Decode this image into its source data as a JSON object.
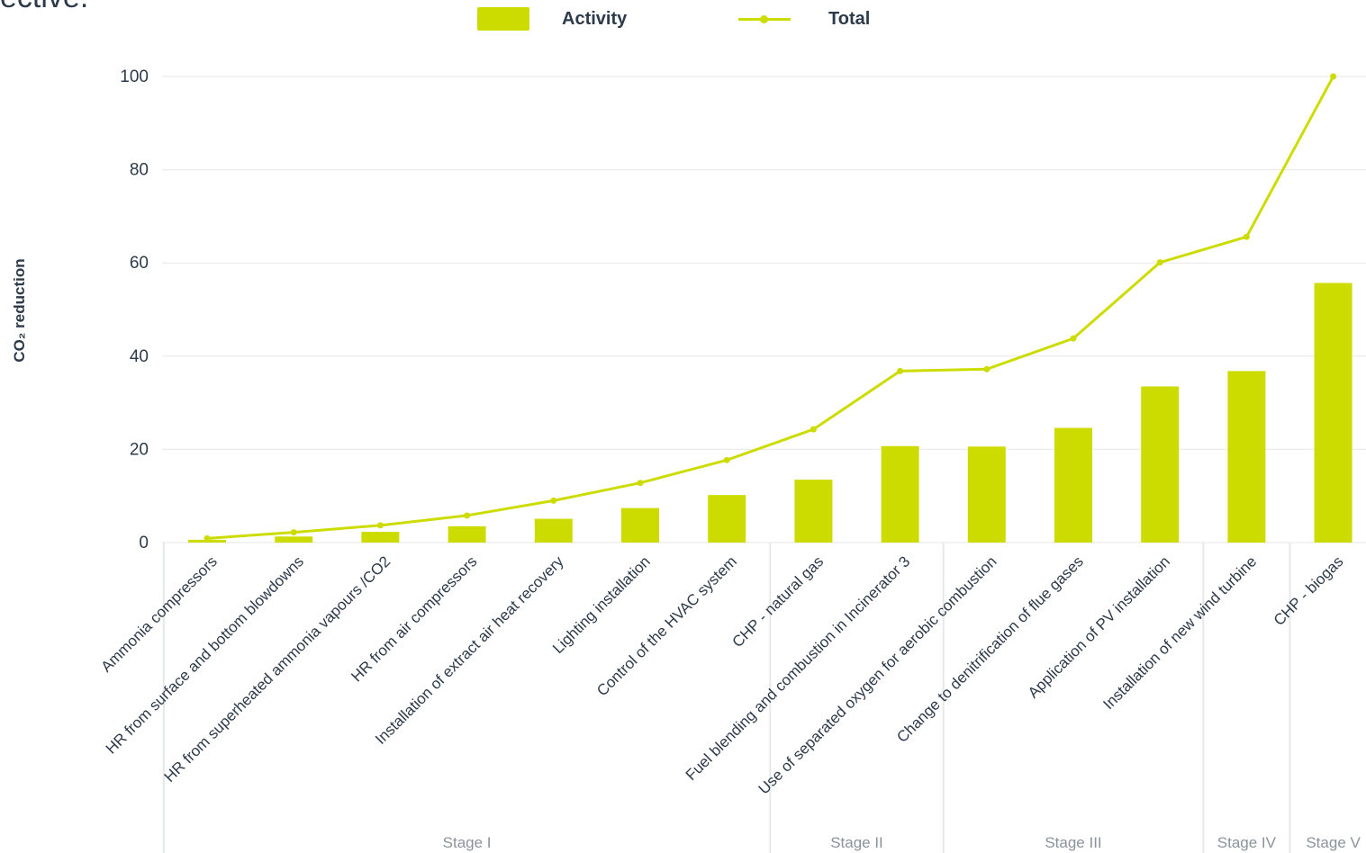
{
  "cut_text": "ective.",
  "legend": {
    "activity": "Activity",
    "total": "Total"
  },
  "colors": {
    "bar": "#cddc00",
    "line": "#cddc00",
    "grid": "#e6e8ea",
    "text": "#2d3a4a",
    "stage_text": "#8a939c"
  },
  "chart_data": {
    "type": "bar",
    "ylabel": "CO₂ reduction",
    "ylim": [
      0,
      100
    ],
    "yticks": [
      0,
      20,
      40,
      60,
      80,
      100
    ],
    "grid": true,
    "legend_position": "top",
    "categories": [
      "Ammonia compressors",
      "HR from surface and bottom blowdowns",
      "HR from superheated ammonia vapours /CO2",
      "HR from air compressors",
      "Installation of extract air heat recovery",
      "Lighting installation",
      "Control of the HVAC system",
      "CHP - natural gas",
      "Fuel blending and combustion in Incinerator 3",
      "Use of separated oxygen for aerobic combustion",
      "Change to denitrification of flue gases",
      "Application of PV installation",
      "Installation of new wind turbine",
      "CHP - biogas"
    ],
    "series": [
      {
        "name": "Activity",
        "type": "bar",
        "values": [
          0.6,
          1.3,
          2.3,
          3.5,
          5.1,
          7.4,
          10.2,
          13.5,
          20.7,
          20.6,
          24.6,
          33.5,
          36.8,
          55.7
        ]
      },
      {
        "name": "Total",
        "type": "line",
        "values": [
          0.9,
          2.2,
          3.7,
          5.8,
          9.0,
          12.8,
          17.7,
          24.3,
          36.8,
          37.2,
          43.8,
          60.1,
          65.6,
          100
        ]
      }
    ],
    "stages": [
      {
        "label": "Stage I",
        "from": 0,
        "to": 6
      },
      {
        "label": "Stage II",
        "from": 7,
        "to": 8
      },
      {
        "label": "Stage III",
        "from": 9,
        "to": 11
      },
      {
        "label": "Stage IV",
        "from": 12,
        "to": 12
      },
      {
        "label": "Stage V",
        "from": 13,
        "to": 13
      }
    ]
  }
}
